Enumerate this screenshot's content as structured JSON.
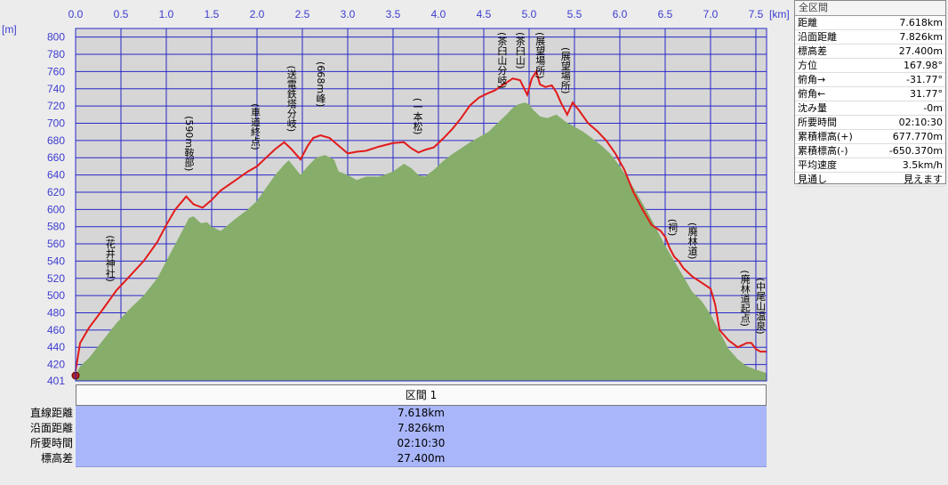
{
  "chart_data": {
    "type": "area",
    "x_unit": "[km]",
    "y_unit": "[m]",
    "xlim": [
      0,
      7.618
    ],
    "ylim": [
      401,
      810
    ],
    "x_ticks": [
      "0.0",
      "0.5",
      "1.0",
      "1.5",
      "2.0",
      "2.5",
      "3.0",
      "3.5",
      "4.0",
      "4.5",
      "5.0",
      "5.5",
      "6.0",
      "6.5",
      "7.0",
      "7.5"
    ],
    "y_ticks": [
      "800",
      "780",
      "760",
      "740",
      "720",
      "700",
      "680",
      "660",
      "640",
      "620",
      "600",
      "580",
      "560",
      "540",
      "520",
      "500",
      "480",
      "460",
      "440",
      "420",
      "401"
    ],
    "series": [
      {
        "name": "elevation",
        "x": [
          0.0,
          0.05,
          0.15,
          0.3,
          0.45,
          0.6,
          0.75,
          0.9,
          1.0,
          1.1,
          1.22,
          1.3,
          1.4,
          1.5,
          1.6,
          1.75,
          1.9,
          2.0,
          2.1,
          2.2,
          2.3,
          2.38,
          2.48,
          2.56,
          2.62,
          2.7,
          2.8,
          2.9,
          3.0,
          3.1,
          3.2,
          3.35,
          3.5,
          3.62,
          3.7,
          3.78,
          3.85,
          3.95,
          4.05,
          4.15,
          4.25,
          4.35,
          4.45,
          4.55,
          4.62,
          4.72,
          4.82,
          4.9,
          4.98,
          5.03,
          5.08,
          5.12,
          5.18,
          5.25,
          5.3,
          5.35,
          5.42,
          5.48,
          5.55,
          5.65,
          5.75,
          5.85,
          5.95,
          6.05,
          6.15,
          6.25,
          6.35,
          6.45,
          6.5,
          6.55,
          6.6,
          6.65,
          6.7,
          6.8,
          6.9,
          7.0,
          7.05,
          7.1,
          7.2,
          7.3,
          7.4,
          7.45,
          7.5,
          7.55,
          7.618
        ],
        "y": [
          413,
          445,
          463,
          484,
          506,
          523,
          540,
          562,
          582,
          600,
          615,
          606,
          602,
          611,
          622,
          633,
          644,
          650,
          660,
          670,
          678,
          670,
          658,
          674,
          683,
          686,
          683,
          674,
          665,
          667,
          668,
          673,
          677,
          678,
          671,
          666,
          669,
          672,
          682,
          693,
          706,
          721,
          730,
          735,
          738,
          745,
          752,
          750,
          733,
          752,
          760,
          745,
          742,
          744,
          736,
          724,
          710,
          724,
          715,
          700,
          691,
          680,
          665,
          646,
          620,
          600,
          582,
          575,
          568,
          555,
          545,
          540,
          532,
          522,
          515,
          508,
          490,
          460,
          448,
          440,
          445,
          445,
          438,
          435,
          435
        ]
      },
      {
        "name": "terrain",
        "x": [
          0.0,
          0.05,
          0.15,
          0.3,
          0.45,
          0.6,
          0.75,
          0.9,
          1.0,
          1.1,
          1.2,
          1.25,
          1.3,
          1.38,
          1.45,
          1.5,
          1.6,
          1.75,
          1.9,
          2.0,
          2.1,
          2.2,
          2.3,
          2.35,
          2.42,
          2.48,
          2.56,
          2.65,
          2.75,
          2.85,
          2.9,
          3.0,
          3.1,
          3.2,
          3.35,
          3.5,
          3.62,
          3.7,
          3.78,
          3.85,
          3.95,
          4.05,
          4.15,
          4.25,
          4.35,
          4.45,
          4.55,
          4.65,
          4.75,
          4.82,
          4.88,
          4.95,
          5.0,
          5.05,
          5.12,
          5.2,
          5.3,
          5.4,
          5.5,
          5.6,
          5.7,
          5.8,
          5.9,
          6.0,
          6.1,
          6.2,
          6.3,
          6.4,
          6.5,
          6.6,
          6.7,
          6.8,
          6.9,
          7.0,
          7.1,
          7.2,
          7.3,
          7.4,
          7.5,
          7.618
        ],
        "y": [
          408,
          418,
          428,
          448,
          468,
          485,
          500,
          520,
          540,
          560,
          580,
          590,
          592,
          584,
          585,
          580,
          575,
          588,
          600,
          610,
          625,
          640,
          652,
          657,
          648,
          640,
          650,
          660,
          663,
          658,
          644,
          640,
          634,
          638,
          638,
          644,
          653,
          648,
          640,
          638,
          646,
          656,
          664,
          671,
          678,
          684,
          690,
          700,
          710,
          718,
          722,
          724,
          722,
          715,
          708,
          706,
          710,
          702,
          696,
          690,
          682,
          674,
          664,
          650,
          634,
          616,
          598,
          578,
          558,
          540,
          522,
          504,
          494,
          478,
          458,
          438,
          426,
          418,
          414,
          410
        ]
      }
    ],
    "annotations": [
      {
        "x": 0.38,
        "label": "(花井神社)"
      },
      {
        "x": 1.25,
        "label": "(590m鞍部)"
      },
      {
        "x": 1.98,
        "label": "(車道終点)"
      },
      {
        "x": 2.38,
        "label": "(送電鉄塔分岐)"
      },
      {
        "x": 2.7,
        "label": "(668m峰)"
      },
      {
        "x": 3.77,
        "label": "(一本松)"
      },
      {
        "x": 4.7,
        "label": "(茶臼山分岐)"
      },
      {
        "x": 4.9,
        "label": "(茶臼山)"
      },
      {
        "x": 5.12,
        "label": "(展望場所)"
      },
      {
        "x": 5.4,
        "label": "(展望場所)"
      },
      {
        "x": 6.58,
        "label": "(祠)"
      },
      {
        "x": 6.8,
        "label": "(廃林道)"
      },
      {
        "x": 7.38,
        "label": "(廃林道起点)"
      },
      {
        "x": 7.55,
        "label": "(中尾山温泉)"
      }
    ],
    "colors": {
      "plot_bg": "#d6d6d6",
      "grid": "#2828c8",
      "terrain": "#86ad6a",
      "profile": "#e21a1a"
    }
  },
  "side_panel": {
    "title": "全区間",
    "rows": [
      {
        "label": "距離",
        "value": "7.618km"
      },
      {
        "label": "沿面距離",
        "value": "7.826km"
      },
      {
        "label": "標高差",
        "value": "27.400m"
      },
      {
        "label": "方位",
        "value": "167.98°"
      },
      {
        "label": "俯角→",
        "value": "-31.77°"
      },
      {
        "label": "俯角←",
        "value": "31.77°"
      },
      {
        "label": "沈み量",
        "value": "-0m"
      },
      {
        "label": "所要時間",
        "value": "02:10:30"
      },
      {
        "label": "累積標高(+)",
        "value": "677.770m"
      },
      {
        "label": "累積標高(-)",
        "value": "-650.370m"
      },
      {
        "label": "平均速度",
        "value": "3.5km/h"
      },
      {
        "label": "見通し",
        "value": "見えます"
      }
    ]
  },
  "section_table": {
    "header": "区間 1",
    "rows": [
      {
        "label": "直線距離",
        "value": "7.618km"
      },
      {
        "label": "沿面距離",
        "value": "7.826km"
      },
      {
        "label": "所要時間",
        "value": "02:10:30"
      },
      {
        "label": "標高差",
        "value": "27.400m"
      }
    ]
  }
}
